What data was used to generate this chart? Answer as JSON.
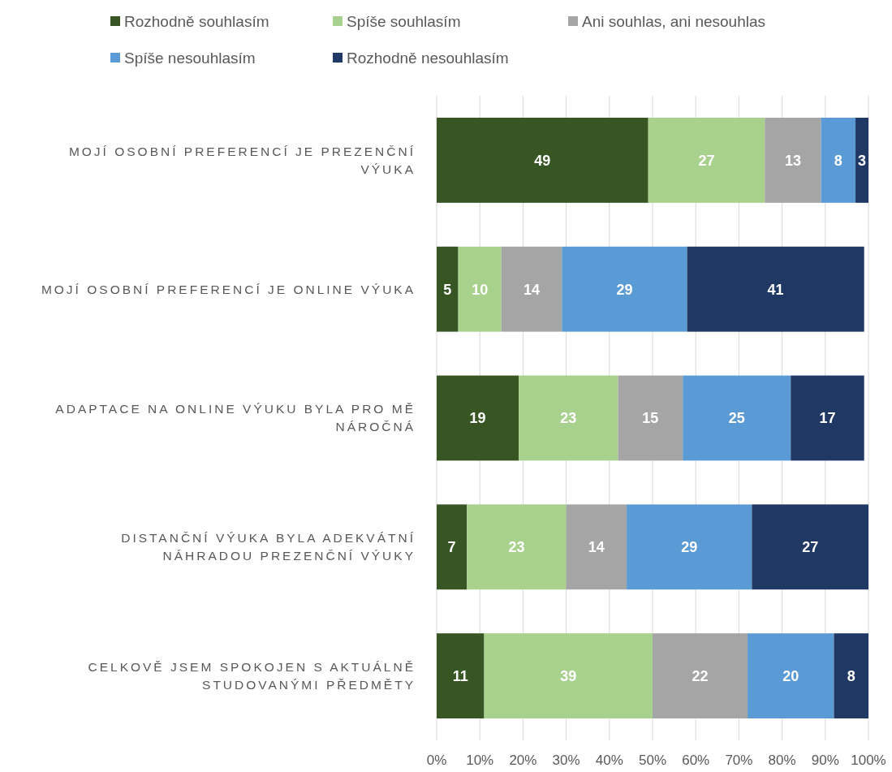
{
  "chart_data": {
    "type": "bar",
    "orientation": "horizontal",
    "stacked": true,
    "categories": [
      "MOJÍ OSOBNÍ PREFERENCÍ JE PREZENČNÍ VÝUKA",
      "MOJÍ OSOBNÍ PREFERENCÍ JE ONLINE VÝUKA",
      "ADAPTACE NA ONLINE VÝUKU BYLA PRO MĚ NÁROČNÁ",
      "DISTANČNÍ VÝUKA BYLA ADEKVÁTNÍ NÁHRADOU PREZENČNÍ VÝUKY",
      "CELKOVĚ JSEM SPOKOJEN S AKTUÁLNĚ STUDOVANÝMI PŘEDMĚTY"
    ],
    "series": [
      {
        "name": "Rozhodně souhlasím",
        "color": "#375623",
        "values": [
          49,
          5,
          19,
          7,
          11
        ]
      },
      {
        "name": "Spíše souhlasím",
        "color": "#a9d18e",
        "values": [
          27,
          10,
          23,
          23,
          39
        ]
      },
      {
        "name": "Ani souhlas, ani nesouhlas",
        "color": "#a5a5a5",
        "values": [
          13,
          14,
          15,
          14,
          22
        ]
      },
      {
        "name": "Spíše nesouhlasím",
        "color": "#5b9bd5",
        "values": [
          8,
          29,
          25,
          29,
          20
        ]
      },
      {
        "name": "Rozhodně nesouhlasím",
        "color": "#203864",
        "values": [
          3,
          41,
          17,
          27,
          8
        ]
      }
    ],
    "xlim": [
      0,
      100
    ],
    "xticks": [
      {
        "value": 0,
        "label": "0%"
      },
      {
        "value": 10,
        "label": "10%"
      },
      {
        "value": 20,
        "label": "20%"
      },
      {
        "value": 30,
        "label": "30%"
      },
      {
        "value": 40,
        "label": "40%"
      },
      {
        "value": 50,
        "label": "50%"
      },
      {
        "value": 60,
        "label": "60%"
      },
      {
        "value": 70,
        "label": "70%"
      },
      {
        "value": 80,
        "label": "80%"
      },
      {
        "value": 90,
        "label": "90%"
      },
      {
        "value": 100,
        "label": "100%"
      }
    ],
    "grid": "x",
    "legend": "top",
    "data_labels": true
  }
}
